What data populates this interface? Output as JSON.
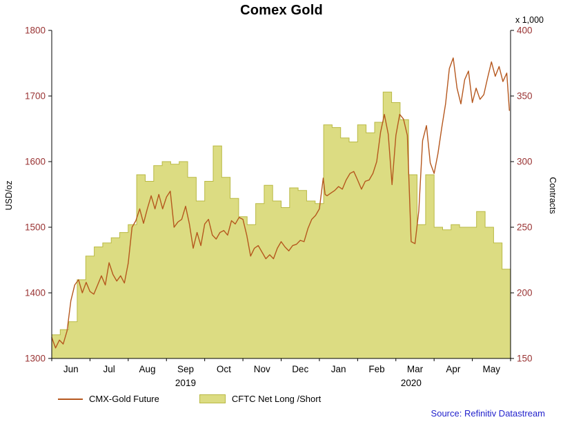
{
  "footer": {
    "source": "Source: Refinitiv Datastream"
  },
  "colors": {
    "axis_number": "#993333",
    "axis_line": "#000000",
    "source_text": "#2222cc",
    "background": "#ffffff"
  },
  "chart_data": {
    "type": "line+area",
    "title": "Comex Gold",
    "left_axis": {
      "label": "USD/oz",
      "min": 1300,
      "max": 1800,
      "ticks": [
        1300,
        1400,
        1500,
        1600,
        1700,
        1800
      ]
    },
    "right_axis": {
      "label": "Contracts",
      "unit": "x 1,000",
      "min": 150,
      "max": 400,
      "ticks": [
        150,
        200,
        250,
        300,
        350,
        400
      ]
    },
    "x_axis": {
      "months": [
        "Jun",
        "Jul",
        "Aug",
        "Sep",
        "Oct",
        "Nov",
        "Dec",
        "Jan",
        "Feb",
        "Mar",
        "Apr",
        "May"
      ],
      "years": [
        {
          "label": "2019",
          "pos": 3.5
        },
        {
          "label": "2020",
          "pos": 9.4
        }
      ]
    },
    "series": [
      {
        "name": "CMX-Gold Future",
        "type": "line",
        "axis": "left",
        "color": "#b5571d",
        "points": [
          [
            0.0,
            1332
          ],
          [
            0.1,
            1316
          ],
          [
            0.2,
            1328
          ],
          [
            0.3,
            1322
          ],
          [
            0.4,
            1342
          ],
          [
            0.5,
            1388
          ],
          [
            0.6,
            1412
          ],
          [
            0.7,
            1420
          ],
          [
            0.8,
            1400
          ],
          [
            0.9,
            1416
          ],
          [
            1.0,
            1402
          ],
          [
            1.1,
            1398
          ],
          [
            1.2,
            1412
          ],
          [
            1.3,
            1426
          ],
          [
            1.4,
            1412
          ],
          [
            1.5,
            1446
          ],
          [
            1.6,
            1428
          ],
          [
            1.7,
            1418
          ],
          [
            1.8,
            1426
          ],
          [
            1.9,
            1415
          ],
          [
            2.0,
            1445
          ],
          [
            2.1,
            1500
          ],
          [
            2.2,
            1510
          ],
          [
            2.3,
            1528
          ],
          [
            2.4,
            1506
          ],
          [
            2.5,
            1528
          ],
          [
            2.6,
            1548
          ],
          [
            2.7,
            1528
          ],
          [
            2.8,
            1550
          ],
          [
            2.9,
            1528
          ],
          [
            3.0,
            1546
          ],
          [
            3.1,
            1555
          ],
          [
            3.2,
            1500
          ],
          [
            3.3,
            1508
          ],
          [
            3.4,
            1512
          ],
          [
            3.5,
            1532
          ],
          [
            3.6,
            1505
          ],
          [
            3.7,
            1468
          ],
          [
            3.8,
            1492
          ],
          [
            3.9,
            1472
          ],
          [
            4.0,
            1505
          ],
          [
            4.1,
            1512
          ],
          [
            4.2,
            1488
          ],
          [
            4.3,
            1482
          ],
          [
            4.4,
            1492
          ],
          [
            4.5,
            1495
          ],
          [
            4.6,
            1488
          ],
          [
            4.7,
            1510
          ],
          [
            4.8,
            1505
          ],
          [
            4.9,
            1515
          ],
          [
            5.0,
            1512
          ],
          [
            5.1,
            1488
          ],
          [
            5.2,
            1456
          ],
          [
            5.3,
            1468
          ],
          [
            5.4,
            1472
          ],
          [
            5.5,
            1462
          ],
          [
            5.6,
            1452
          ],
          [
            5.7,
            1458
          ],
          [
            5.8,
            1452
          ],
          [
            5.9,
            1468
          ],
          [
            6.0,
            1478
          ],
          [
            6.1,
            1470
          ],
          [
            6.2,
            1464
          ],
          [
            6.3,
            1472
          ],
          [
            6.4,
            1474
          ],
          [
            6.5,
            1480
          ],
          [
            6.6,
            1478
          ],
          [
            6.7,
            1498
          ],
          [
            6.8,
            1512
          ],
          [
            6.9,
            1518
          ],
          [
            7.0,
            1528
          ],
          [
            7.1,
            1575
          ],
          [
            7.15,
            1550
          ],
          [
            7.2,
            1548
          ],
          [
            7.3,
            1552
          ],
          [
            7.4,
            1556
          ],
          [
            7.5,
            1562
          ],
          [
            7.6,
            1558
          ],
          [
            7.7,
            1572
          ],
          [
            7.8,
            1582
          ],
          [
            7.9,
            1585
          ],
          [
            8.0,
            1572
          ],
          [
            8.1,
            1558
          ],
          [
            8.2,
            1570
          ],
          [
            8.3,
            1572
          ],
          [
            8.4,
            1582
          ],
          [
            8.5,
            1600
          ],
          [
            8.6,
            1645
          ],
          [
            8.7,
            1672
          ],
          [
            8.8,
            1642
          ],
          [
            8.9,
            1565
          ],
          [
            9.0,
            1640
          ],
          [
            9.1,
            1672
          ],
          [
            9.2,
            1665
          ],
          [
            9.3,
            1640
          ],
          [
            9.4,
            1478
          ],
          [
            9.5,
            1475
          ],
          [
            9.6,
            1525
          ],
          [
            9.7,
            1632
          ],
          [
            9.8,
            1655
          ],
          [
            9.9,
            1598
          ],
          [
            10.0,
            1582
          ],
          [
            10.1,
            1612
          ],
          [
            10.2,
            1652
          ],
          [
            10.3,
            1688
          ],
          [
            10.4,
            1742
          ],
          [
            10.5,
            1758
          ],
          [
            10.6,
            1712
          ],
          [
            10.7,
            1688
          ],
          [
            10.8,
            1725
          ],
          [
            10.9,
            1738
          ],
          [
            11.0,
            1690
          ],
          [
            11.1,
            1712
          ],
          [
            11.2,
            1695
          ],
          [
            11.3,
            1702
          ],
          [
            11.4,
            1728
          ],
          [
            11.5,
            1752
          ],
          [
            11.6,
            1730
          ],
          [
            11.7,
            1745
          ],
          [
            11.8,
            1722
          ],
          [
            11.9,
            1735
          ],
          [
            11.97,
            1678
          ]
        ]
      },
      {
        "name": "CFTC Net Long /Short",
        "type": "step-area",
        "axis": "right",
        "fill": "#dcdc82",
        "stroke": "#b9b944",
        "values": [
          168,
          172,
          178,
          210,
          228,
          235,
          238,
          242,
          246,
          252,
          290,
          285,
          297,
          300,
          298,
          300,
          288,
          270,
          285,
          312,
          288,
          272,
          258,
          252,
          268,
          282,
          270,
          265,
          280,
          278,
          270,
          268,
          328,
          326,
          318,
          315,
          328,
          322,
          330,
          353,
          345,
          332,
          290,
          252,
          290,
          250,
          248,
          252,
          250,
          250,
          262,
          250,
          238,
          218
        ]
      }
    ]
  }
}
